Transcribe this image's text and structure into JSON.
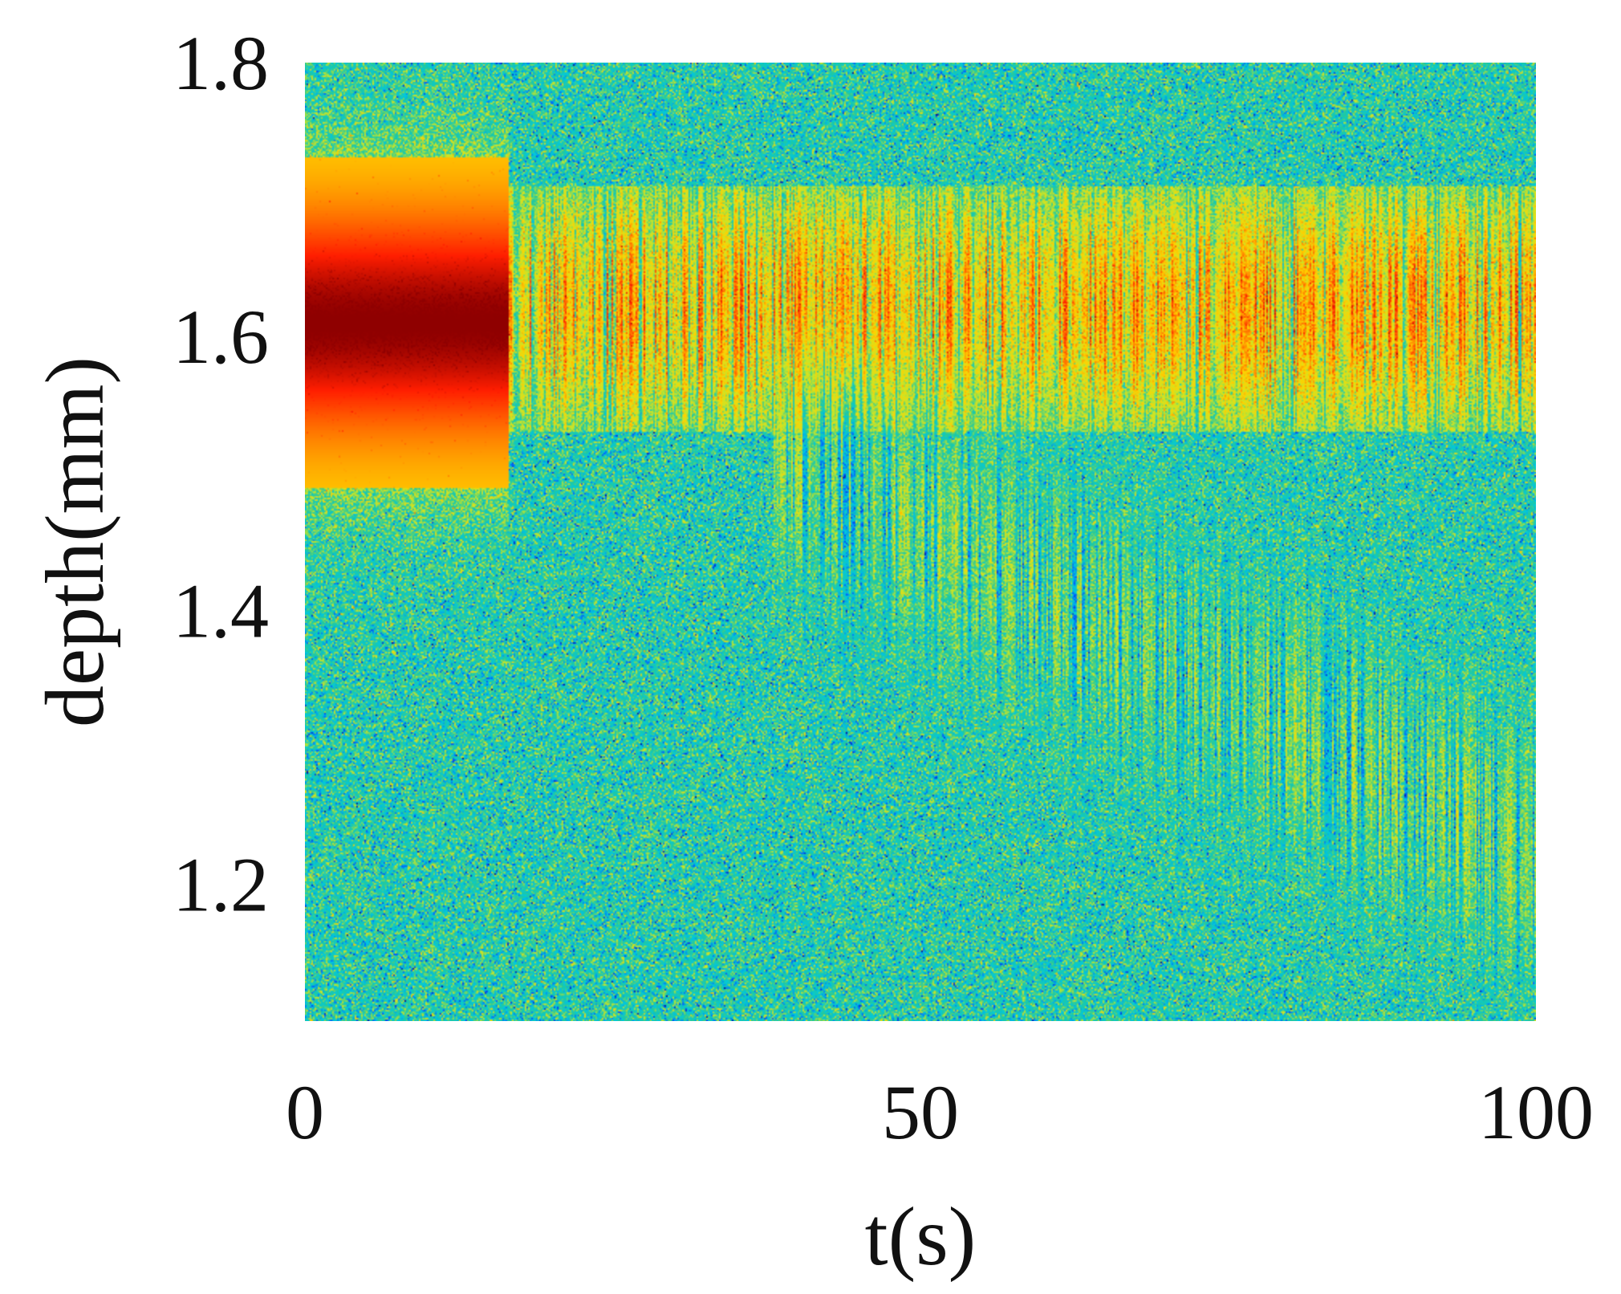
{
  "chart_data": {
    "type": "heatmap",
    "title": "",
    "xlabel": "t(s)",
    "ylabel": "depth(mm)",
    "xlim": [
      0,
      100
    ],
    "ylim": [
      1.1,
      1.8
    ],
    "x_ticks": [
      {
        "value": 0,
        "label": "0"
      },
      {
        "value": 50,
        "label": "50"
      },
      {
        "value": 100,
        "label": "100"
      }
    ],
    "y_ticks": [
      {
        "value": 1.2,
        "label": "1.2"
      },
      {
        "value": 1.4,
        "label": "1.4"
      },
      {
        "value": 1.6,
        "label": "1.6"
      },
      {
        "value": 1.8,
        "label": "1.8"
      }
    ],
    "colormap": "jet",
    "colormap_stops": [
      "#00008f",
      "#0050ff",
      "#00c8e0",
      "#20c8a0",
      "#c8e628",
      "#ffd200",
      "#ff7800",
      "#ff1e00",
      "#8f0000"
    ],
    "features": [
      {
        "t_start": 0,
        "t_end": 16.5,
        "depth_center": 1.61,
        "depth_halfwidth": 0.115,
        "peak_intensity": 1.0,
        "pattern": "smooth"
      },
      {
        "t_start": 16.5,
        "t_end": 100,
        "depth_top": 1.71,
        "depth_bottom": 1.53,
        "peak_intensity": 0.85,
        "pattern": "striated"
      },
      {
        "t_start": 38,
        "t_end": 100,
        "depth_start": 1.52,
        "depth_end": 1.22,
        "peak_intensity": 0.55,
        "pattern": "striated-diagonal"
      }
    ],
    "grid": false,
    "legend": "none"
  }
}
